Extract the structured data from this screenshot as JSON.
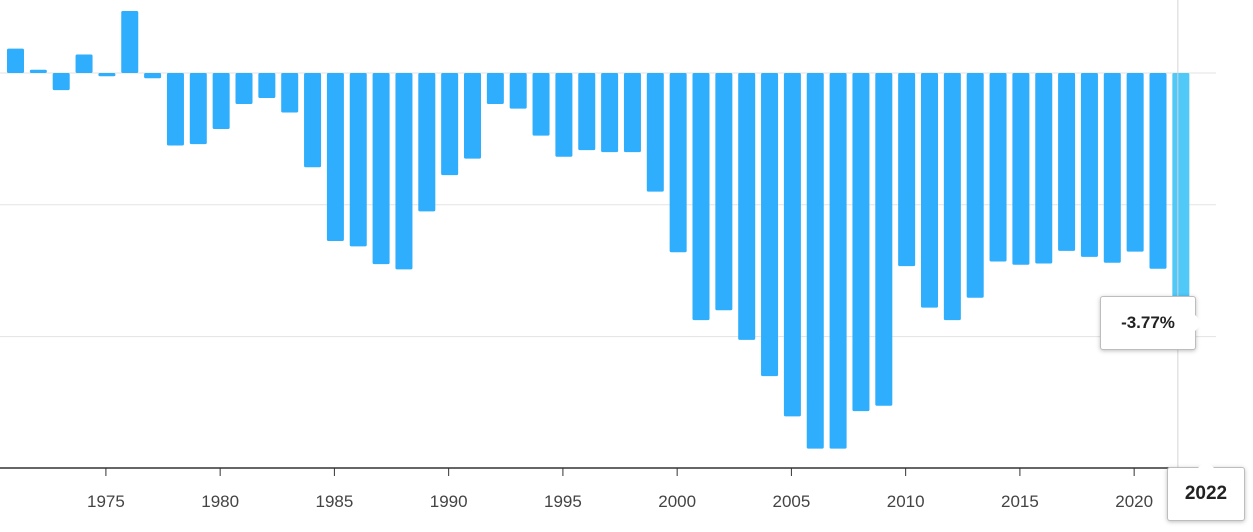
{
  "chart_data": {
    "type": "bar",
    "x": [
      1971,
      1972,
      1973,
      1974,
      1975,
      1976,
      1977,
      1978,
      1979,
      1980,
      1981,
      1982,
      1983,
      1984,
      1985,
      1986,
      1987,
      1988,
      1989,
      1990,
      1991,
      1992,
      1993,
      1994,
      1995,
      1996,
      1997,
      1998,
      1999,
      2000,
      2001,
      2002,
      2003,
      2004,
      2005,
      2006,
      2007,
      2008,
      2009,
      2010,
      2011,
      2012,
      2013,
      2014,
      2015,
      2016,
      2017,
      2018,
      2019,
      2020,
      2021,
      2022
    ],
    "values": [
      0.37,
      0.05,
      -0.26,
      0.28,
      -0.05,
      0.94,
      -0.08,
      -1.1,
      -1.08,
      -0.85,
      -0.47,
      -0.38,
      -0.6,
      -1.43,
      -2.55,
      -2.63,
      -2.9,
      -2.98,
      -2.1,
      -1.55,
      -1.3,
      -0.47,
      -0.54,
      -0.95,
      -1.27,
      -1.17,
      -1.2,
      -1.2,
      -1.8,
      -2.72,
      -3.75,
      -3.6,
      -4.05,
      -4.6,
      -5.21,
      -5.7,
      -5.7,
      -5.13,
      -5.05,
      -2.93,
      -3.56,
      -3.75,
      -3.41,
      -2.86,
      -2.91,
      -2.89,
      -2.7,
      -2.79,
      -2.88,
      -2.71,
      -2.97,
      -3.77
    ],
    "x_ticks": [
      1975,
      1980,
      1985,
      1990,
      1995,
      2000,
      2005,
      2010,
      2015,
      2020
    ],
    "ylim": [
      -6.1,
      1.1
    ],
    "gridlines": [
      0,
      -2,
      -4
    ],
    "bar_color": "#2eaefc",
    "highlight_color": "#50c8f8",
    "highlight": {
      "year": "2022",
      "value_label": "-3.77%"
    }
  }
}
